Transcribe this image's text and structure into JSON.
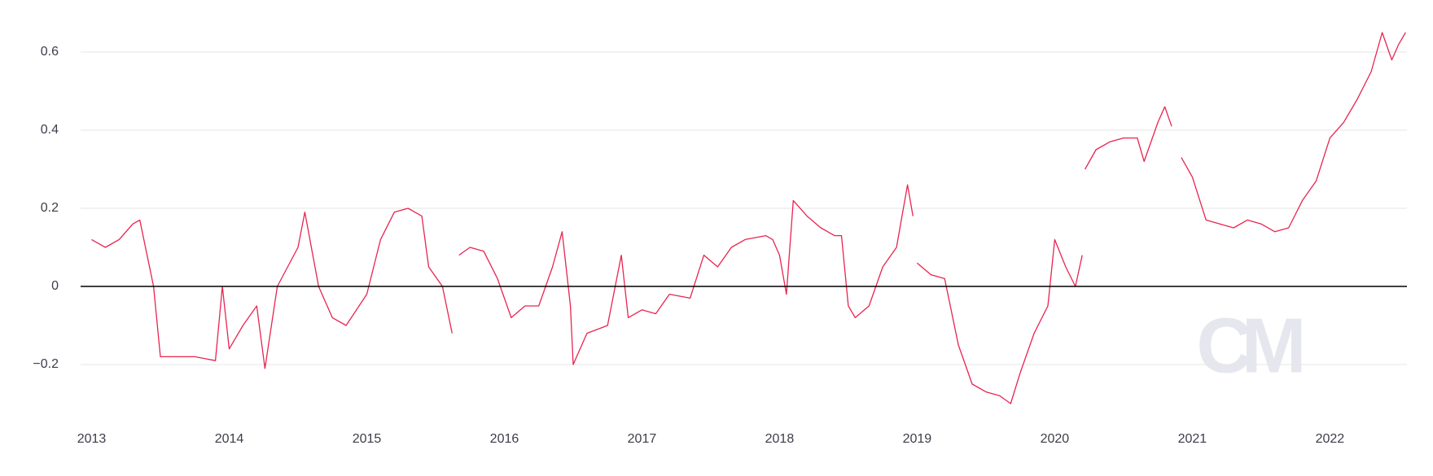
{
  "chart_data": {
    "type": "line",
    "watermark": "CM",
    "x": [
      2013.0,
      2013.1,
      2013.2,
      2013.3,
      2013.35,
      2013.45,
      2013.5,
      2013.6,
      2013.75,
      2013.9,
      2013.95,
      2014.0,
      2014.1,
      2014.2,
      2014.26,
      2014.35,
      2014.5,
      2014.55,
      2014.65,
      2014.75,
      2014.85,
      2015.0,
      2015.1,
      2015.2,
      2015.3,
      2015.4,
      2015.45,
      2015.55,
      2015.62,
      2015.645,
      2015.67,
      2015.75,
      2015.85,
      2015.95,
      2016.05,
      2016.15,
      2016.25,
      2016.35,
      2016.42,
      2016.48,
      2016.5,
      2016.6,
      2016.75,
      2016.85,
      2016.9,
      2017.0,
      2017.1,
      2017.2,
      2017.35,
      2017.45,
      2017.55,
      2017.65,
      2017.75,
      2017.9,
      2017.95,
      2018.0,
      2018.05,
      2018.1,
      2018.2,
      2018.3,
      2018.4,
      2018.45,
      2018.5,
      2018.55,
      2018.65,
      2018.75,
      2018.85,
      2018.93,
      2018.97,
      2018.985,
      2019.0,
      2019.1,
      2019.2,
      2019.3,
      2019.4,
      2019.5,
      2019.6,
      2019.68,
      2019.75,
      2019.85,
      2019.95,
      2020.0,
      2020.08,
      2020.15,
      2020.2,
      2020.21,
      2020.22,
      2020.3,
      2020.4,
      2020.5,
      2020.6,
      2020.65,
      2020.75,
      2020.8,
      2020.85,
      2020.885,
      2020.92,
      2021.0,
      2021.1,
      2021.2,
      2021.3,
      2021.4,
      2021.5,
      2021.6,
      2021.7,
      2021.8,
      2021.9,
      2022.0,
      2022.1,
      2022.2,
      2022.3,
      2022.38,
      2022.45,
      2022.5,
      2022.55
    ],
    "series": [
      {
        "color": "#e8244f",
        "values": [
          0.12,
          0.1,
          0.12,
          0.16,
          0.17,
          0.0,
          -0.18,
          -0.18,
          -0.18,
          -0.19,
          0.0,
          -0.16,
          -0.1,
          -0.05,
          -0.21,
          0.0,
          0.1,
          0.19,
          0.0,
          -0.08,
          -0.1,
          -0.02,
          0.12,
          0.19,
          0.2,
          0.18,
          0.05,
          0.0,
          -0.12,
          null,
          0.08,
          0.1,
          0.09,
          0.02,
          -0.08,
          -0.05,
          -0.05,
          0.05,
          0.14,
          -0.05,
          -0.2,
          -0.12,
          -0.1,
          0.08,
          -0.08,
          -0.06,
          -0.07,
          -0.02,
          -0.03,
          0.08,
          0.05,
          0.1,
          0.12,
          0.13,
          0.12,
          0.08,
          -0.02,
          0.22,
          0.18,
          0.15,
          0.13,
          0.13,
          -0.05,
          -0.08,
          -0.05,
          0.05,
          0.1,
          0.26,
          0.18,
          null,
          0.06,
          0.03,
          0.02,
          -0.15,
          -0.25,
          -0.27,
          -0.28,
          -0.3,
          -0.22,
          -0.12,
          -0.05,
          0.12,
          0.05,
          0.0,
          0.08,
          null,
          0.3,
          0.35,
          0.37,
          0.38,
          0.38,
          0.32,
          0.42,
          0.46,
          0.41,
          null,
          0.33,
          0.28,
          0.17,
          0.16,
          0.15,
          0.17,
          0.16,
          0.14,
          0.15,
          0.22,
          0.27,
          0.38,
          0.42,
          0.48,
          0.55,
          0.65,
          0.58,
          0.62,
          0.65
        ]
      }
    ],
    "xlim": [
      2012.92,
      2022.56
    ],
    "xticks": [
      2013,
      2014,
      2015,
      2016,
      2017,
      2018,
      2019,
      2020,
      2021,
      2022
    ],
    "ylim": [
      -0.35,
      0.68
    ],
    "yticks": [
      {
        "value": -0.2,
        "label": "−0.2"
      },
      0,
      0.2,
      0.4,
      0.6
    ],
    "grid": true
  }
}
